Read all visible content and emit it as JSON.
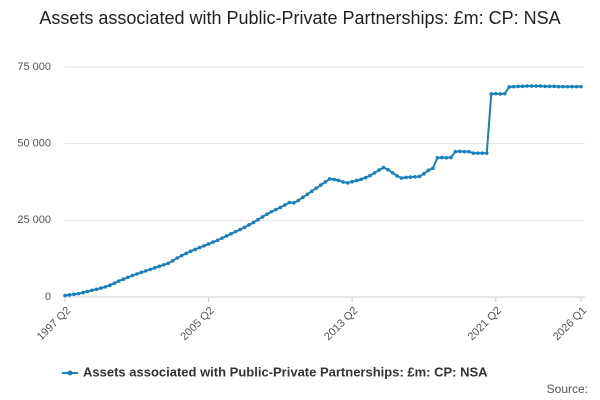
{
  "chart_data": {
    "type": "line",
    "title": "Assets associated with Public-Private Partnerships: £m: CP: NSA",
    "source": "Source:",
    "categories": [
      "1997 Q2",
      null,
      null,
      null,
      null,
      null,
      null,
      null,
      null,
      null,
      null,
      null,
      null,
      null,
      null,
      null,
      null,
      null,
      null,
      null,
      null,
      null,
      null,
      null,
      null,
      null,
      null,
      null,
      null,
      null,
      null,
      null,
      "2005 Q2",
      null,
      null,
      null,
      null,
      null,
      null,
      null,
      null,
      null,
      null,
      null,
      null,
      null,
      null,
      null,
      null,
      null,
      null,
      null,
      null,
      null,
      null,
      null,
      null,
      null,
      null,
      null,
      null,
      null,
      null,
      null,
      "2013 Q2",
      null,
      null,
      null,
      null,
      null,
      null,
      null,
      null,
      null,
      null,
      null,
      null,
      null,
      null,
      null,
      null,
      null,
      null,
      null,
      null,
      null,
      null,
      null,
      null,
      null,
      null,
      null,
      null,
      null,
      null,
      null,
      "2021 Q2",
      null,
      null,
      null,
      null,
      null,
      null,
      null,
      null,
      null,
      null,
      null,
      null,
      null,
      null,
      null,
      null,
      null,
      null,
      "2026 Q1"
    ],
    "series": [
      {
        "name": "Assets associated with Public-Private Partnerships: £m: CP: NSA",
        "color": "#1a80bb",
        "values": [
          500,
          700,
          900,
          1100,
          1400,
          1800,
          2200,
          2500,
          2900,
          3300,
          3800,
          4500,
          5200,
          5800,
          6400,
          7000,
          7500,
          8000,
          8500,
          9000,
          9500,
          10000,
          10500,
          11000,
          11800,
          12700,
          13500,
          14200,
          14900,
          15500,
          16100,
          16700,
          17300,
          17900,
          18500,
          19200,
          19900,
          20600,
          21300,
          22000,
          22700,
          23500,
          24300,
          25200,
          26100,
          27000,
          27800,
          28500,
          29200,
          30000,
          30800,
          30700,
          31500,
          32500,
          33500,
          34500,
          35500,
          36500,
          37500,
          38500,
          38300,
          38000,
          37500,
          37200,
          37600,
          38000,
          38400,
          38900,
          39600,
          40500,
          41400,
          42200,
          41500,
          40500,
          39500,
          38800,
          39000,
          39100,
          39200,
          39300,
          40200,
          41300,
          42000,
          45400,
          45500,
          45400,
          45500,
          47400,
          47500,
          47400,
          47400,
          46900,
          46900,
          46900,
          46900,
          66200,
          66300,
          66200,
          66300,
          68500,
          68600,
          68700,
          68700,
          68800,
          68800,
          68800,
          68800,
          68700,
          68700,
          68700,
          68600,
          68600,
          68600,
          68600,
          68600,
          68600
        ]
      }
    ],
    "ylim": [
      0,
      75000
    ],
    "yticks": [
      0,
      {
        "value": 25000,
        "label": "25 000"
      },
      {
        "value": 50000,
        "label": "50 000"
      },
      {
        "value": 75000,
        "label": "75 000"
      }
    ],
    "grid": true
  }
}
